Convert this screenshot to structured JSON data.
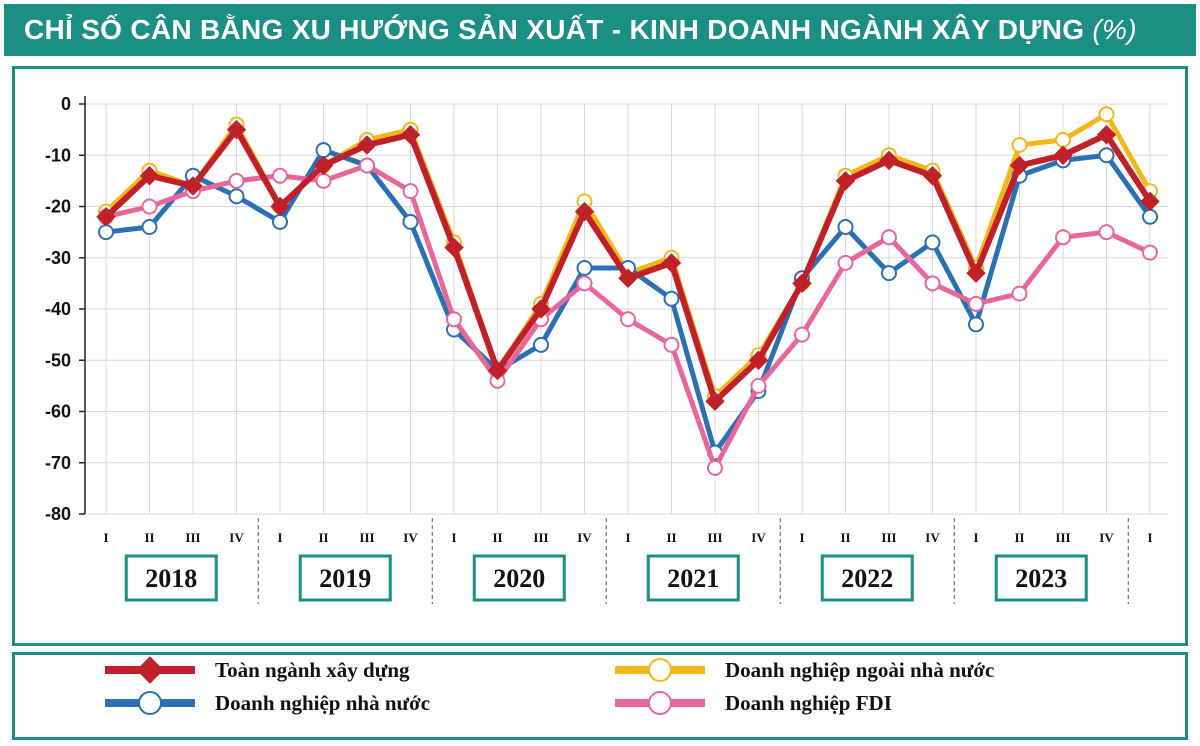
{
  "title": {
    "main": "CHỈ SỐ CÂN BẰNG XU HƯỚNG SẢN XUẤT - KINH DOANH NGÀNH XÂY DỰNG",
    "unit": "(%)"
  },
  "chart_data": {
    "type": "line",
    "ylim": [
      -80,
      0
    ],
    "yticks": [
      0,
      -10,
      -20,
      -30,
      -40,
      -50,
      -60,
      -70,
      -80
    ],
    "grid": true,
    "categories": [
      "I",
      "II",
      "III",
      "IV",
      "I",
      "II",
      "III",
      "IV",
      "I",
      "II",
      "III",
      "IV",
      "I",
      "II",
      "III",
      "IV",
      "I",
      "II",
      "III",
      "IV",
      "I",
      "II",
      "III",
      "IV",
      "I"
    ],
    "years": [
      "2018",
      "2019",
      "2020",
      "2021",
      "2022",
      "2023"
    ],
    "series": [
      {
        "name": "Doanh nghiệp ngoài nhà nước",
        "color": "#f4b71a",
        "marker": "circle",
        "values": [
          -21,
          -13,
          -16,
          -4,
          -20,
          -12,
          -7,
          -5,
          -27,
          -52,
          -39,
          -19,
          -33,
          -30,
          -57,
          -49,
          -35,
          -14,
          -10,
          -13,
          -32,
          -8,
          -7,
          -2,
          -17
        ]
      },
      {
        "name": "Doanh nghiệp nhà nước",
        "color": "#2b6fb4",
        "marker": "circle",
        "values": [
          -25,
          -24,
          -14,
          -18,
          -23,
          -9,
          -12,
          -23,
          -44,
          -52,
          -47,
          -32,
          -32,
          -38,
          -68,
          -56,
          -34,
          -24,
          -33,
          -27,
          -43,
          -14,
          -11,
          -10,
          -22
        ]
      },
      {
        "name": "Doanh nghiệp FDI",
        "color": "#e8679a",
        "marker": "circle",
        "values": [
          -22,
          -20,
          -17,
          -15,
          -14,
          -15,
          -12,
          -17,
          -42,
          -54,
          -42,
          -35,
          -42,
          -47,
          -71,
          -55,
          -45,
          -31,
          -26,
          -35,
          -39,
          -37,
          -26,
          -25,
          -29
        ]
      },
      {
        "name": "Toàn ngành xây dựng",
        "color": "#c0202a",
        "marker": "diamond",
        "values": [
          -22,
          -14,
          -16,
          -5,
          -20,
          -12,
          -8,
          -6,
          -28,
          -52,
          -40,
          -21,
          -34,
          -31,
          -58,
          -50,
          -35,
          -15,
          -11,
          -14,
          -33,
          -12,
          -10,
          -6,
          -19
        ]
      }
    ]
  },
  "legend": [
    {
      "label": "Toàn ngành xây dựng",
      "color": "#c0202a",
      "marker": "diamond"
    },
    {
      "label": "Doanh nghiệp ngoài nhà nước",
      "color": "#f4b71a",
      "marker": "circle"
    },
    {
      "label": "Doanh nghiệp nhà nước",
      "color": "#2b6fb4",
      "marker": "circle"
    },
    {
      "label": "Doanh nghiệp FDI",
      "color": "#e8679a",
      "marker": "circle"
    }
  ]
}
